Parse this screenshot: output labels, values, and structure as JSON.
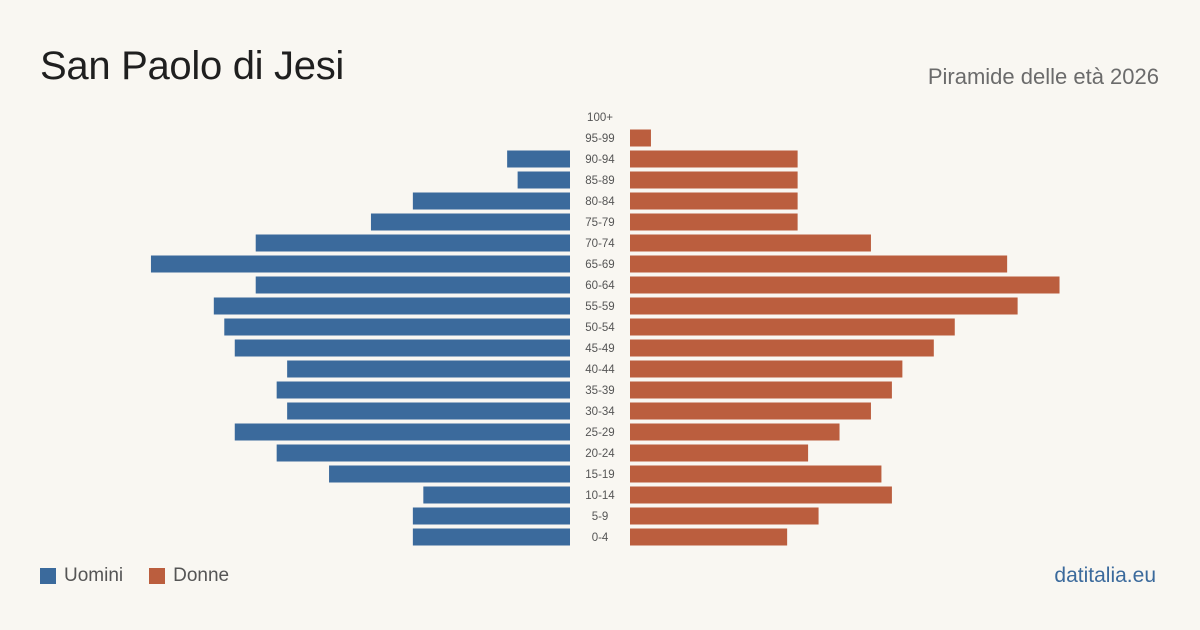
{
  "header": {
    "title": "San Paolo di Jesi",
    "subtitle": "Piramide delle età 2026"
  },
  "legend": {
    "men_label": "Uomini",
    "women_label": "Donne"
  },
  "brand": "datitalia.eu",
  "colors": {
    "men": "#3b6a9c",
    "women": "#bb5e3e",
    "background": "#f9f7f2"
  },
  "chart_data": {
    "type": "bar",
    "orientation": "horizontal-pyramid",
    "categories": [
      "100+",
      "95-99",
      "90-94",
      "85-89",
      "80-84",
      "75-79",
      "70-74",
      "65-69",
      "60-64",
      "55-59",
      "50-54",
      "45-49",
      "40-44",
      "35-39",
      "30-34",
      "25-29",
      "20-24",
      "15-19",
      "10-14",
      "5-9",
      "0-4"
    ],
    "series": [
      {
        "name": "Uomini",
        "values": [
          0,
          0,
          6,
          5,
          15,
          19,
          30,
          40,
          30,
          34,
          33,
          32,
          27,
          28,
          27,
          32,
          28,
          23,
          14,
          15,
          15
        ]
      },
      {
        "name": "Donne",
        "values": [
          0,
          2,
          16,
          16,
          16,
          16,
          23,
          36,
          41,
          37,
          31,
          29,
          26,
          25,
          23,
          20,
          17,
          24,
          25,
          18,
          15
        ]
      }
    ],
    "grid": false,
    "legend_position": "bottom-left"
  }
}
